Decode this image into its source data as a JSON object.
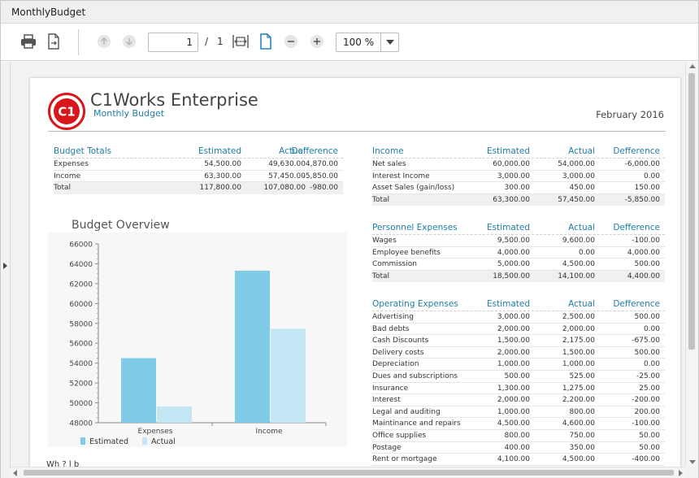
{
  "window": {
    "title": "MonthlyBudget"
  },
  "toolbar": {
    "page_current": "1",
    "page_separator": "/",
    "page_total": "1",
    "zoom": "100 %"
  },
  "report": {
    "company": "C1Works Enterprise",
    "subtitle": "Monthly Budget",
    "logo_text": "C1",
    "date": "February 2016",
    "footer_text": "Wh                    ?    l          b          "
  },
  "colors": {
    "estimated": "#7fcbe8",
    "actual": "#c2e6f4",
    "accent": "#1e7fa8",
    "logo_red": "#d9161c"
  },
  "tables": {
    "budget_totals": {
      "headers": [
        "Budget Totals",
        "Estimated",
        "Actual",
        "Defference"
      ],
      "rows": [
        [
          "Expenses",
          "54,500.00",
          "49,630.00",
          "4,870.00"
        ],
        [
          "Income",
          "63,300.00",
          "57,450.00",
          "-5,850.00"
        ],
        [
          "Total",
          "117,800.00",
          "107,080.00",
          "-980.00"
        ]
      ]
    },
    "income": {
      "headers": [
        "Income",
        "Estimated",
        "Actual",
        "Defference"
      ],
      "rows": [
        [
          "Net sales",
          "60,000.00",
          "54,000.00",
          "-6,000.00"
        ],
        [
          "Interest Income",
          "3,000.00",
          "3,000.00",
          "0.00"
        ],
        [
          "Asset Sales (gain/loss)",
          "300.00",
          "450.00",
          "150.00"
        ],
        [
          "Total",
          "63,300.00",
          "57,450.00",
          "-5,850.00"
        ]
      ]
    },
    "personnel": {
      "headers": [
        "Personnel Expenses",
        "Estimated",
        "Actual",
        "Defference"
      ],
      "rows": [
        [
          "Wages",
          "9,500.00",
          "9,600.00",
          "-100.00"
        ],
        [
          "Employee benefits",
          "4,000.00",
          "0.00",
          "4,000.00"
        ],
        [
          "Commission",
          "5,000.00",
          "4,500.00",
          "500.00"
        ],
        [
          "Total",
          "18,500.00",
          "14,100.00",
          "4,400.00"
        ]
      ]
    },
    "operating": {
      "headers": [
        "Operating Expenses",
        "Estimated",
        "Actual",
        "Defference"
      ],
      "rows": [
        [
          "Advertising",
          "3,000.00",
          "2,500.00",
          "500.00"
        ],
        [
          "Bad debts",
          "2,000.00",
          "2,000.00",
          "0.00"
        ],
        [
          "Cash Discounts",
          "1,500.00",
          "2,175.00",
          "-675.00"
        ],
        [
          "Delivery costs",
          "2,000.00",
          "1,500.00",
          "500.00"
        ],
        [
          "Depreciation",
          "1,000.00",
          "1,000.00",
          "0.00"
        ],
        [
          "Dues and subscriptions",
          "500.00",
          "525.00",
          "-25.00"
        ],
        [
          "Insurance",
          "1,300.00",
          "1,275.00",
          "25.00"
        ],
        [
          "Interest",
          "2,000.00",
          "2,200.00",
          "-200.00"
        ],
        [
          "Legal and auditing",
          "1,000.00",
          "800.00",
          "200.00"
        ],
        [
          "Maintinance and repairs",
          "4,500.00",
          "4,600.00",
          "-100.00"
        ],
        [
          "Office supplies",
          "800.00",
          "750.00",
          "50.00"
        ],
        [
          "Postage",
          "400.00",
          "350.00",
          "50.00"
        ],
        [
          "Rent or mortgage",
          "4,100.00",
          "4,500.00",
          "-400.00"
        ]
      ]
    }
  },
  "chart_data": {
    "type": "bar",
    "title": "Budget Overview",
    "categories": [
      "Expenses",
      "Income"
    ],
    "series": [
      {
        "name": "Estimated",
        "values": [
          54500,
          63300
        ]
      },
      {
        "name": "Actual",
        "values": [
          49630,
          57450
        ]
      }
    ],
    "ylim": [
      48000,
      66000
    ],
    "yticks": [
      "48000",
      "50000",
      "52000",
      "54000",
      "56000",
      "58000",
      "60000",
      "62000",
      "64000",
      "66000"
    ],
    "legend": "bottom-left",
    "grid": false
  }
}
